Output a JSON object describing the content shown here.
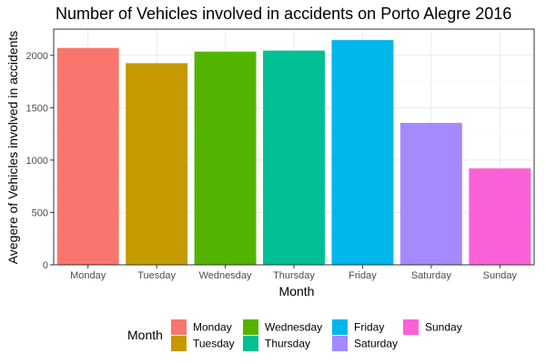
{
  "chart_data": {
    "type": "bar",
    "title": "Number of Vehicles involved in accidents on Porto Alegre 2016",
    "xlabel": "Month",
    "ylabel": "Avegere of Vehicles involved in accidents",
    "categories": [
      "Monday",
      "Tuesday",
      "Wednesday",
      "Thursday",
      "Friday",
      "Saturday",
      "Sunday"
    ],
    "values": [
      2070,
      1925,
      2035,
      2045,
      2145,
      1355,
      920
    ],
    "colors": [
      "#F8766D",
      "#C49A00",
      "#53B400",
      "#00C094",
      "#00B6EB",
      "#A58AFF",
      "#FB61D7"
    ],
    "ylim": [
      0,
      2250
    ],
    "yticks": [
      0,
      500,
      1000,
      1500,
      2000
    ],
    "grid": true,
    "legend": {
      "title": "Month",
      "position": "bottom"
    }
  }
}
